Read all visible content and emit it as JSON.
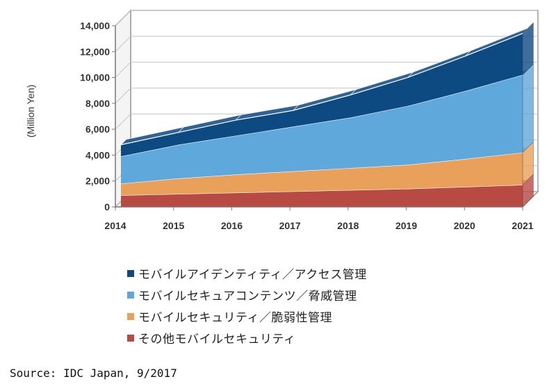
{
  "chart_data": {
    "type": "area",
    "stacked": true,
    "three_d": true,
    "ylabel": "(Million Yen)",
    "ylim": [
      0,
      14000
    ],
    "ytick_values": [
      0,
      2000,
      4000,
      6000,
      8000,
      10000,
      12000,
      14000
    ],
    "yticks": [
      "0",
      "2,000",
      "4,000",
      "6,000",
      "8,000",
      "10,000",
      "12,000",
      "14,000"
    ],
    "categories": [
      "2014",
      "2015",
      "2016",
      "2017",
      "2018",
      "2019",
      "2020",
      "2021"
    ],
    "grid": true,
    "legend_position": "bottom",
    "series": [
      {
        "name": "その他モバイルセキュリティ",
        "color": "#b84a44",
        "values": [
          900,
          1000,
          1100,
          1200,
          1300,
          1400,
          1550,
          1700
        ]
      },
      {
        "name": "モバイルセキュリティ／脆弱性管理",
        "color": "#e8a05a",
        "values": [
          900,
          1200,
          1400,
          1550,
          1700,
          1850,
          2150,
          2500
        ]
      },
      {
        "name": "モバイルセキュアコンテンツ／脅威管理",
        "color": "#5fa8db",
        "values": [
          2100,
          2600,
          3000,
          3450,
          3900,
          4550,
          5250,
          6000
        ]
      },
      {
        "name": "モバイルアイデンティティ／アクセス管理",
        "color": "#0e4a82",
        "values": [
          900,
          950,
          1200,
          1250,
          1750,
          2200,
          2700,
          3200
        ]
      }
    ]
  },
  "legend": [
    {
      "label": "モバイルアイデンティティ／アクセス管理",
      "color": "#0e4a82"
    },
    {
      "label": "モバイルセキュアコンテンツ／脅威管理",
      "color": "#5fa8db"
    },
    {
      "label": "モバイルセキュリティ／脆弱性管理",
      "color": "#e8a05a"
    },
    {
      "label": "その他モバイルセキュリティ",
      "color": "#b84a44"
    }
  ],
  "source": "Source: IDC Japan, 9/2017"
}
